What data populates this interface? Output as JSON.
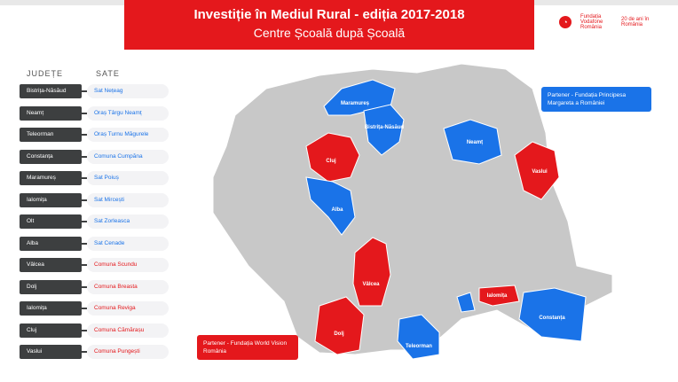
{
  "header": {
    "title": "Investiție în Mediul Rural - ediția 2017-2018",
    "subtitle": "Centre Școală după Școală"
  },
  "logos": {
    "vodafone": "Fundația Vodafone România",
    "anniversary": "20 de ani în România"
  },
  "table": {
    "col_county": "JUDEȚE",
    "col_village": "SATE",
    "rows": [
      {
        "county": "Bistrița-Năsăud",
        "village": "Sat Nețeag",
        "partner": "blue"
      },
      {
        "county": "Neamț",
        "village": "Oraș Târgu Neamț",
        "partner": "blue"
      },
      {
        "county": "Teleorman",
        "village": "Oraș Turnu Măgurele",
        "partner": "blue"
      },
      {
        "county": "Constanța",
        "village": "Comuna Cumpăna",
        "partner": "blue"
      },
      {
        "county": "Maramureș",
        "village": "Sat Poiuș",
        "partner": "blue"
      },
      {
        "county": "Ialomița",
        "village": "Sat Mircești",
        "partner": "blue"
      },
      {
        "county": "Olt",
        "village": "Sat Zorleasca",
        "partner": "blue"
      },
      {
        "county": "Alba",
        "village": "Sat Cenade",
        "partner": "blue"
      },
      {
        "county": "Vâlcea",
        "village": "Comuna Scundu",
        "partner": "red"
      },
      {
        "county": "Dolj",
        "village": "Comuna Breasta",
        "partner": "red"
      },
      {
        "county": "Ialomița",
        "village": "Comuna Reviga",
        "partner": "red"
      },
      {
        "county": "Cluj",
        "village": "Comuna Cămărașu",
        "partner": "red"
      },
      {
        "county": "Vaslui",
        "village": "Comuna Pungești",
        "partner": "red"
      }
    ]
  },
  "colors": {
    "blue": "#1a73e8",
    "red": "#e4181c",
    "gray": "#c8c8c8",
    "dark": "#3d3f40"
  },
  "callouts": {
    "blue": "Partener - Fundația Principesa Margareta a României",
    "red": "Partener - Fundația World Vision România"
  },
  "map": {
    "labels": {
      "maramures": "Maramureș",
      "bistrita": "Bistrița-Năsăud",
      "cluj": "Cluj",
      "alba": "Alba",
      "neamt": "Neamț",
      "vaslui": "Vaslui",
      "valcea": "Vâlcea",
      "dolj": "Dolj",
      "teleorman": "Teleorman",
      "ialomita": "Ialomița",
      "constanta": "Constanța"
    }
  }
}
